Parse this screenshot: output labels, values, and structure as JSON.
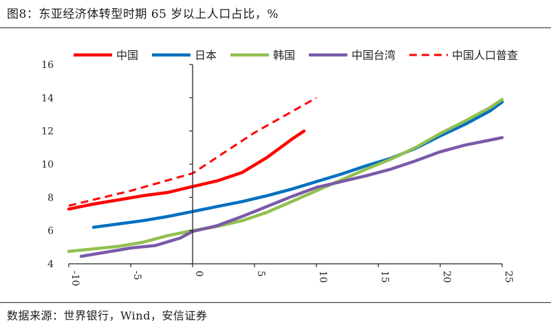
{
  "header": {
    "title": "图8：东亚经济体转型时期 65 岁以上人口占比，%"
  },
  "footer": {
    "source": "数据来源：世界银行，Wind，安信证券"
  },
  "colors": {
    "china": "#ff0000",
    "japan": "#0070c0",
    "korea": "#92c050",
    "taiwan": "#7a5aa8",
    "census": "#ff0000",
    "axis": "#222222"
  },
  "chart_data": {
    "type": "line",
    "title": "",
    "xlabel": "",
    "ylabel": "",
    "xlim": [
      -10,
      25
    ],
    "ylim": [
      4,
      16
    ],
    "x_ticks": [
      -10,
      -5,
      0,
      5,
      10,
      15,
      20,
      25
    ],
    "y_ticks": [
      4,
      6,
      8,
      10,
      12,
      14,
      16
    ],
    "grid": false,
    "legend_position": "top",
    "series": [
      {
        "name": "中国",
        "style": "solid",
        "color": "#ff0000",
        "points": [
          [
            -10,
            7.3
          ],
          [
            -8,
            7.6
          ],
          [
            -6,
            7.85
          ],
          [
            -4,
            8.1
          ],
          [
            -2,
            8.3
          ],
          [
            0,
            8.65
          ],
          [
            2,
            9.0
          ],
          [
            4,
            9.5
          ],
          [
            6,
            10.4
          ],
          [
            8,
            11.5
          ],
          [
            9,
            12.0
          ]
        ]
      },
      {
        "name": "日本",
        "style": "solid",
        "color": "#0070c0",
        "points": [
          [
            -8,
            6.2
          ],
          [
            -6,
            6.4
          ],
          [
            -4,
            6.6
          ],
          [
            -2,
            6.85
          ],
          [
            0,
            7.15
          ],
          [
            2,
            7.45
          ],
          [
            4,
            7.75
          ],
          [
            6,
            8.1
          ],
          [
            8,
            8.5
          ],
          [
            10,
            8.95
          ],
          [
            12,
            9.4
          ],
          [
            14,
            9.9
          ],
          [
            16,
            10.35
          ],
          [
            18,
            10.95
          ],
          [
            20,
            11.7
          ],
          [
            22,
            12.4
          ],
          [
            24,
            13.2
          ],
          [
            25,
            13.75
          ]
        ]
      },
      {
        "name": "韩国",
        "style": "solid",
        "color": "#92c050",
        "points": [
          [
            -10,
            4.75
          ],
          [
            -8,
            4.9
          ],
          [
            -6,
            5.05
          ],
          [
            -4,
            5.3
          ],
          [
            -2,
            5.7
          ],
          [
            0,
            6.0
          ],
          [
            2,
            6.25
          ],
          [
            4,
            6.6
          ],
          [
            6,
            7.1
          ],
          [
            8,
            7.75
          ],
          [
            10,
            8.4
          ],
          [
            12,
            9.05
          ],
          [
            14,
            9.7
          ],
          [
            16,
            10.3
          ],
          [
            18,
            11.0
          ],
          [
            20,
            11.85
          ],
          [
            22,
            12.6
          ],
          [
            24,
            13.4
          ],
          [
            25,
            13.9
          ]
        ]
      },
      {
        "name": "中国台湾",
        "style": "solid",
        "color": "#7a5aa8",
        "points": [
          [
            -9,
            4.45
          ],
          [
            -7,
            4.7
          ],
          [
            -5,
            4.95
          ],
          [
            -3,
            5.1
          ],
          [
            -1,
            5.55
          ],
          [
            0,
            5.95
          ],
          [
            2,
            6.3
          ],
          [
            4,
            6.85
          ],
          [
            6,
            7.45
          ],
          [
            8,
            8.05
          ],
          [
            10,
            8.6
          ],
          [
            12,
            8.95
          ],
          [
            14,
            9.3
          ],
          [
            16,
            9.7
          ],
          [
            18,
            10.2
          ],
          [
            20,
            10.75
          ],
          [
            22,
            11.15
          ],
          [
            24,
            11.45
          ],
          [
            25,
            11.6
          ]
        ]
      },
      {
        "name": "中国人口普查",
        "style": "dashed",
        "color": "#ff0000",
        "points": [
          [
            -10,
            7.5
          ],
          [
            -5,
            8.4
          ],
          [
            0,
            9.45
          ],
          [
            5,
            11.9
          ],
          [
            10,
            14.0
          ]
        ]
      }
    ]
  }
}
